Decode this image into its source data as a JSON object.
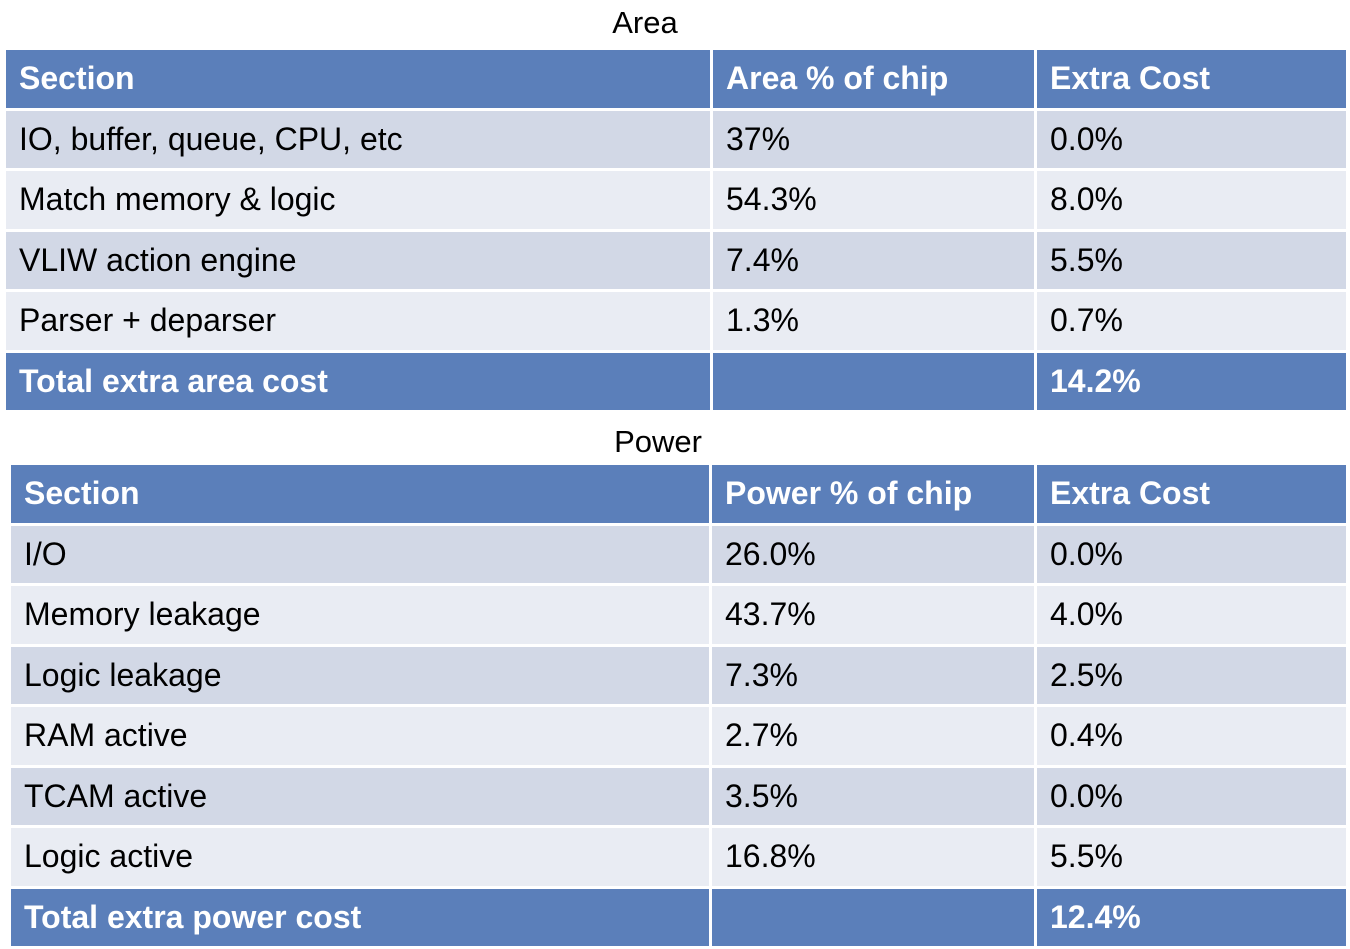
{
  "area": {
    "caption": "Area",
    "headers": [
      "Section",
      "Area % of chip",
      "Extra Cost"
    ],
    "rows": [
      [
        "IO, buffer, queue, CPU, etc",
        "37%",
        "0.0%"
      ],
      [
        "Match memory & logic",
        "54.3%",
        "8.0%"
      ],
      [
        "VLIW action engine",
        "7.4%",
        "5.5%"
      ],
      [
        "Parser + deparser",
        "1.3%",
        "0.7%"
      ]
    ],
    "total": [
      "Total extra area cost",
      "",
      "14.2%"
    ]
  },
  "power": {
    "caption": "Power",
    "headers": [
      "Section",
      "Power % of chip",
      "Extra Cost"
    ],
    "rows": [
      [
        "I/O",
        "26.0%",
        "0.0%"
      ],
      [
        "Memory leakage",
        "43.7%",
        "4.0%"
      ],
      [
        "Logic leakage",
        "7.3%",
        "2.5%"
      ],
      [
        "RAM active",
        "2.7%",
        "0.4%"
      ],
      [
        "TCAM active",
        "3.5%",
        "0.0%"
      ],
      [
        "Logic active",
        "16.8%",
        "5.5%"
      ]
    ],
    "total": [
      "Total extra power cost",
      "",
      "12.4%"
    ]
  },
  "colors": {
    "header": "#5b7fba",
    "row_dark": "#d2d8e6",
    "row_light": "#e9ecf3"
  }
}
